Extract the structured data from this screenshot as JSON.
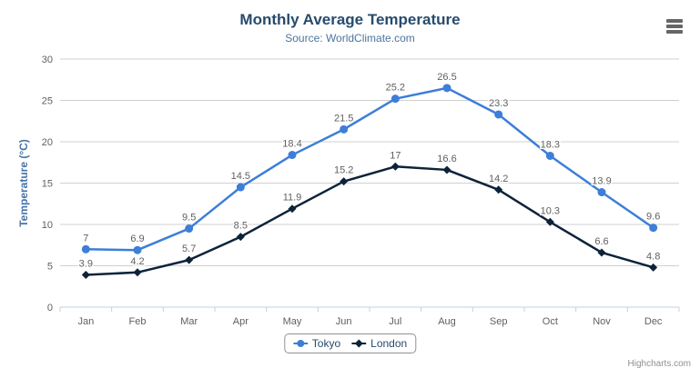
{
  "credits": "Highcharts.com",
  "chart_data": {
    "type": "line",
    "title": "Monthly Average Temperature",
    "subtitle": "Source: WorldClimate.com",
    "categories": [
      "Jan",
      "Feb",
      "Mar",
      "Apr",
      "May",
      "Jun",
      "Jul",
      "Aug",
      "Sep",
      "Oct",
      "Nov",
      "Dec"
    ],
    "series": [
      {
        "name": "Tokyo",
        "color": "#3d7ed8",
        "marker": "circle",
        "values": [
          7,
          6.9,
          9.5,
          14.5,
          18.4,
          21.5,
          25.2,
          26.5,
          23.3,
          18.3,
          13.9,
          9.6
        ]
      },
      {
        "name": "London",
        "color": "#0d233a",
        "marker": "diamond",
        "values": [
          3.9,
          4.2,
          5.7,
          8.5,
          11.9,
          15.2,
          17,
          16.6,
          14.2,
          10.3,
          6.6,
          4.8
        ]
      }
    ],
    "xlabel": "",
    "ylabel": "Temperature (°C)",
    "ylim": [
      0,
      30
    ],
    "yticks": [
      0,
      5,
      10,
      15,
      20,
      25,
      30
    ],
    "grid": true,
    "legend_position": "bottom",
    "data_labels": true
  },
  "colors": {
    "title": "#274b6d",
    "subtitle": "#4d759e",
    "axis_title": "#4572a7",
    "tick_label": "#606060",
    "data_label": "#606060",
    "gridline": "#d0d0d0",
    "axis_line": "#c0d0e0",
    "legend_text": "#274b6d",
    "legend_border": "#909090",
    "credits": "#909090",
    "menu_icon": "#666666"
  }
}
